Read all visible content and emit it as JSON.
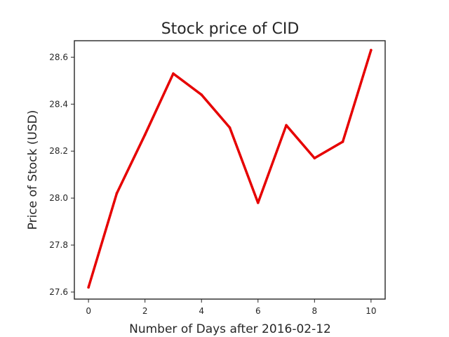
{
  "chart_data": {
    "type": "line",
    "title": "Stock price of CID",
    "xlabel": "Number of Days after 2016-02-12",
    "ylabel": "Price of Stock (USD)",
    "x": [
      0,
      1,
      2,
      3,
      4,
      5,
      6,
      7,
      8,
      9,
      10
    ],
    "series": [
      {
        "values": [
          27.62,
          28.02,
          28.27,
          28.53,
          28.44,
          28.3,
          27.98,
          28.31,
          28.17,
          28.24,
          28.63
        ],
        "color": "#e60000"
      }
    ],
    "xlim": [
      -0.5,
      10.5
    ],
    "ylim": [
      27.57,
      28.67
    ],
    "xticks": [
      0,
      2,
      4,
      6,
      8,
      10
    ],
    "yticks": [
      27.6,
      27.8,
      28.0,
      28.2,
      28.4,
      28.6
    ],
    "ytick_labels": [
      "27.6",
      "27.8",
      "28.0",
      "28.2",
      "28.4",
      "28.6"
    ],
    "grid": false
  }
}
